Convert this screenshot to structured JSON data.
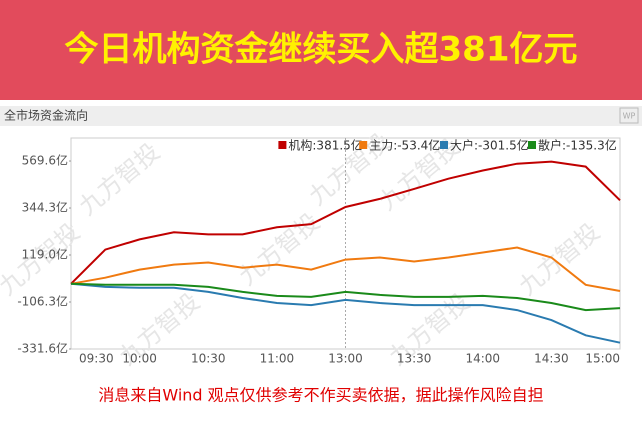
{
  "banner": "今日机构资金继续买入超381亿元",
  "header": "全市场资金流向",
  "logo": "WP",
  "watermark": "九方智投",
  "footer": "消息来自Wind  观点仅供参考不作买卖依据，据此操作风险自担",
  "chart_data": {
    "type": "line",
    "x": [
      "09:30",
      "09:45",
      "10:00",
      "10:15",
      "10:30",
      "10:45",
      "11:00",
      "11:15",
      "11:30",
      "13:15",
      "13:30",
      "13:45",
      "14:00",
      "14:15",
      "14:30",
      "14:45",
      "15:00"
    ],
    "xticks": [
      "09:30",
      "10:00",
      "10:30",
      "11:00",
      "13:00",
      "13:30",
      "14:00",
      "14:30",
      "15:00"
    ],
    "ylim": [
      -331.6,
      680
    ],
    "yticks": [
      {
        "value": 569.6,
        "label": "569.6亿"
      },
      {
        "value": 344.3,
        "label": "344.3亿"
      },
      {
        "value": 119.0,
        "label": "119.0亿"
      },
      {
        "value": -106.3,
        "label": "-106.3亿"
      },
      {
        "value": -331.6,
        "label": "-331.6亿"
      }
    ],
    "grid": false,
    "legend": "top-right",
    "series": [
      {
        "name": "机构:381.5亿",
        "color": "#c00000",
        "values": [
          -19,
          145,
          194,
          228,
          218,
          218,
          252,
          267,
          349,
          388,
          436,
          485,
          524,
          557,
          567,
          543,
          381.5
        ]
      },
      {
        "name": "主力:-53.4亿",
        "color": "#f07a10",
        "values": [
          -19,
          10,
          49,
          73,
          83,
          58,
          73,
          49,
          97,
          107,
          88,
          107,
          131,
          155,
          107,
          -24,
          -53.4
        ]
      },
      {
        "name": "大户:-301.5亿",
        "color": "#2a7bb0",
        "values": [
          -19,
          -34,
          -38,
          -38,
          -58,
          -87,
          -111,
          -121,
          -96,
          -111,
          -121,
          -121,
          -121,
          -145,
          -193,
          -266,
          -301.5
        ]
      },
      {
        "name": "散户:-135.3亿",
        "color": "#1a8a1a",
        "values": [
          -19,
          -24,
          -24,
          -24,
          -34,
          -58,
          -77,
          -82,
          -58,
          -72,
          -82,
          -82,
          -77,
          -87,
          -111,
          -145,
          -135.3
        ]
      }
    ]
  }
}
